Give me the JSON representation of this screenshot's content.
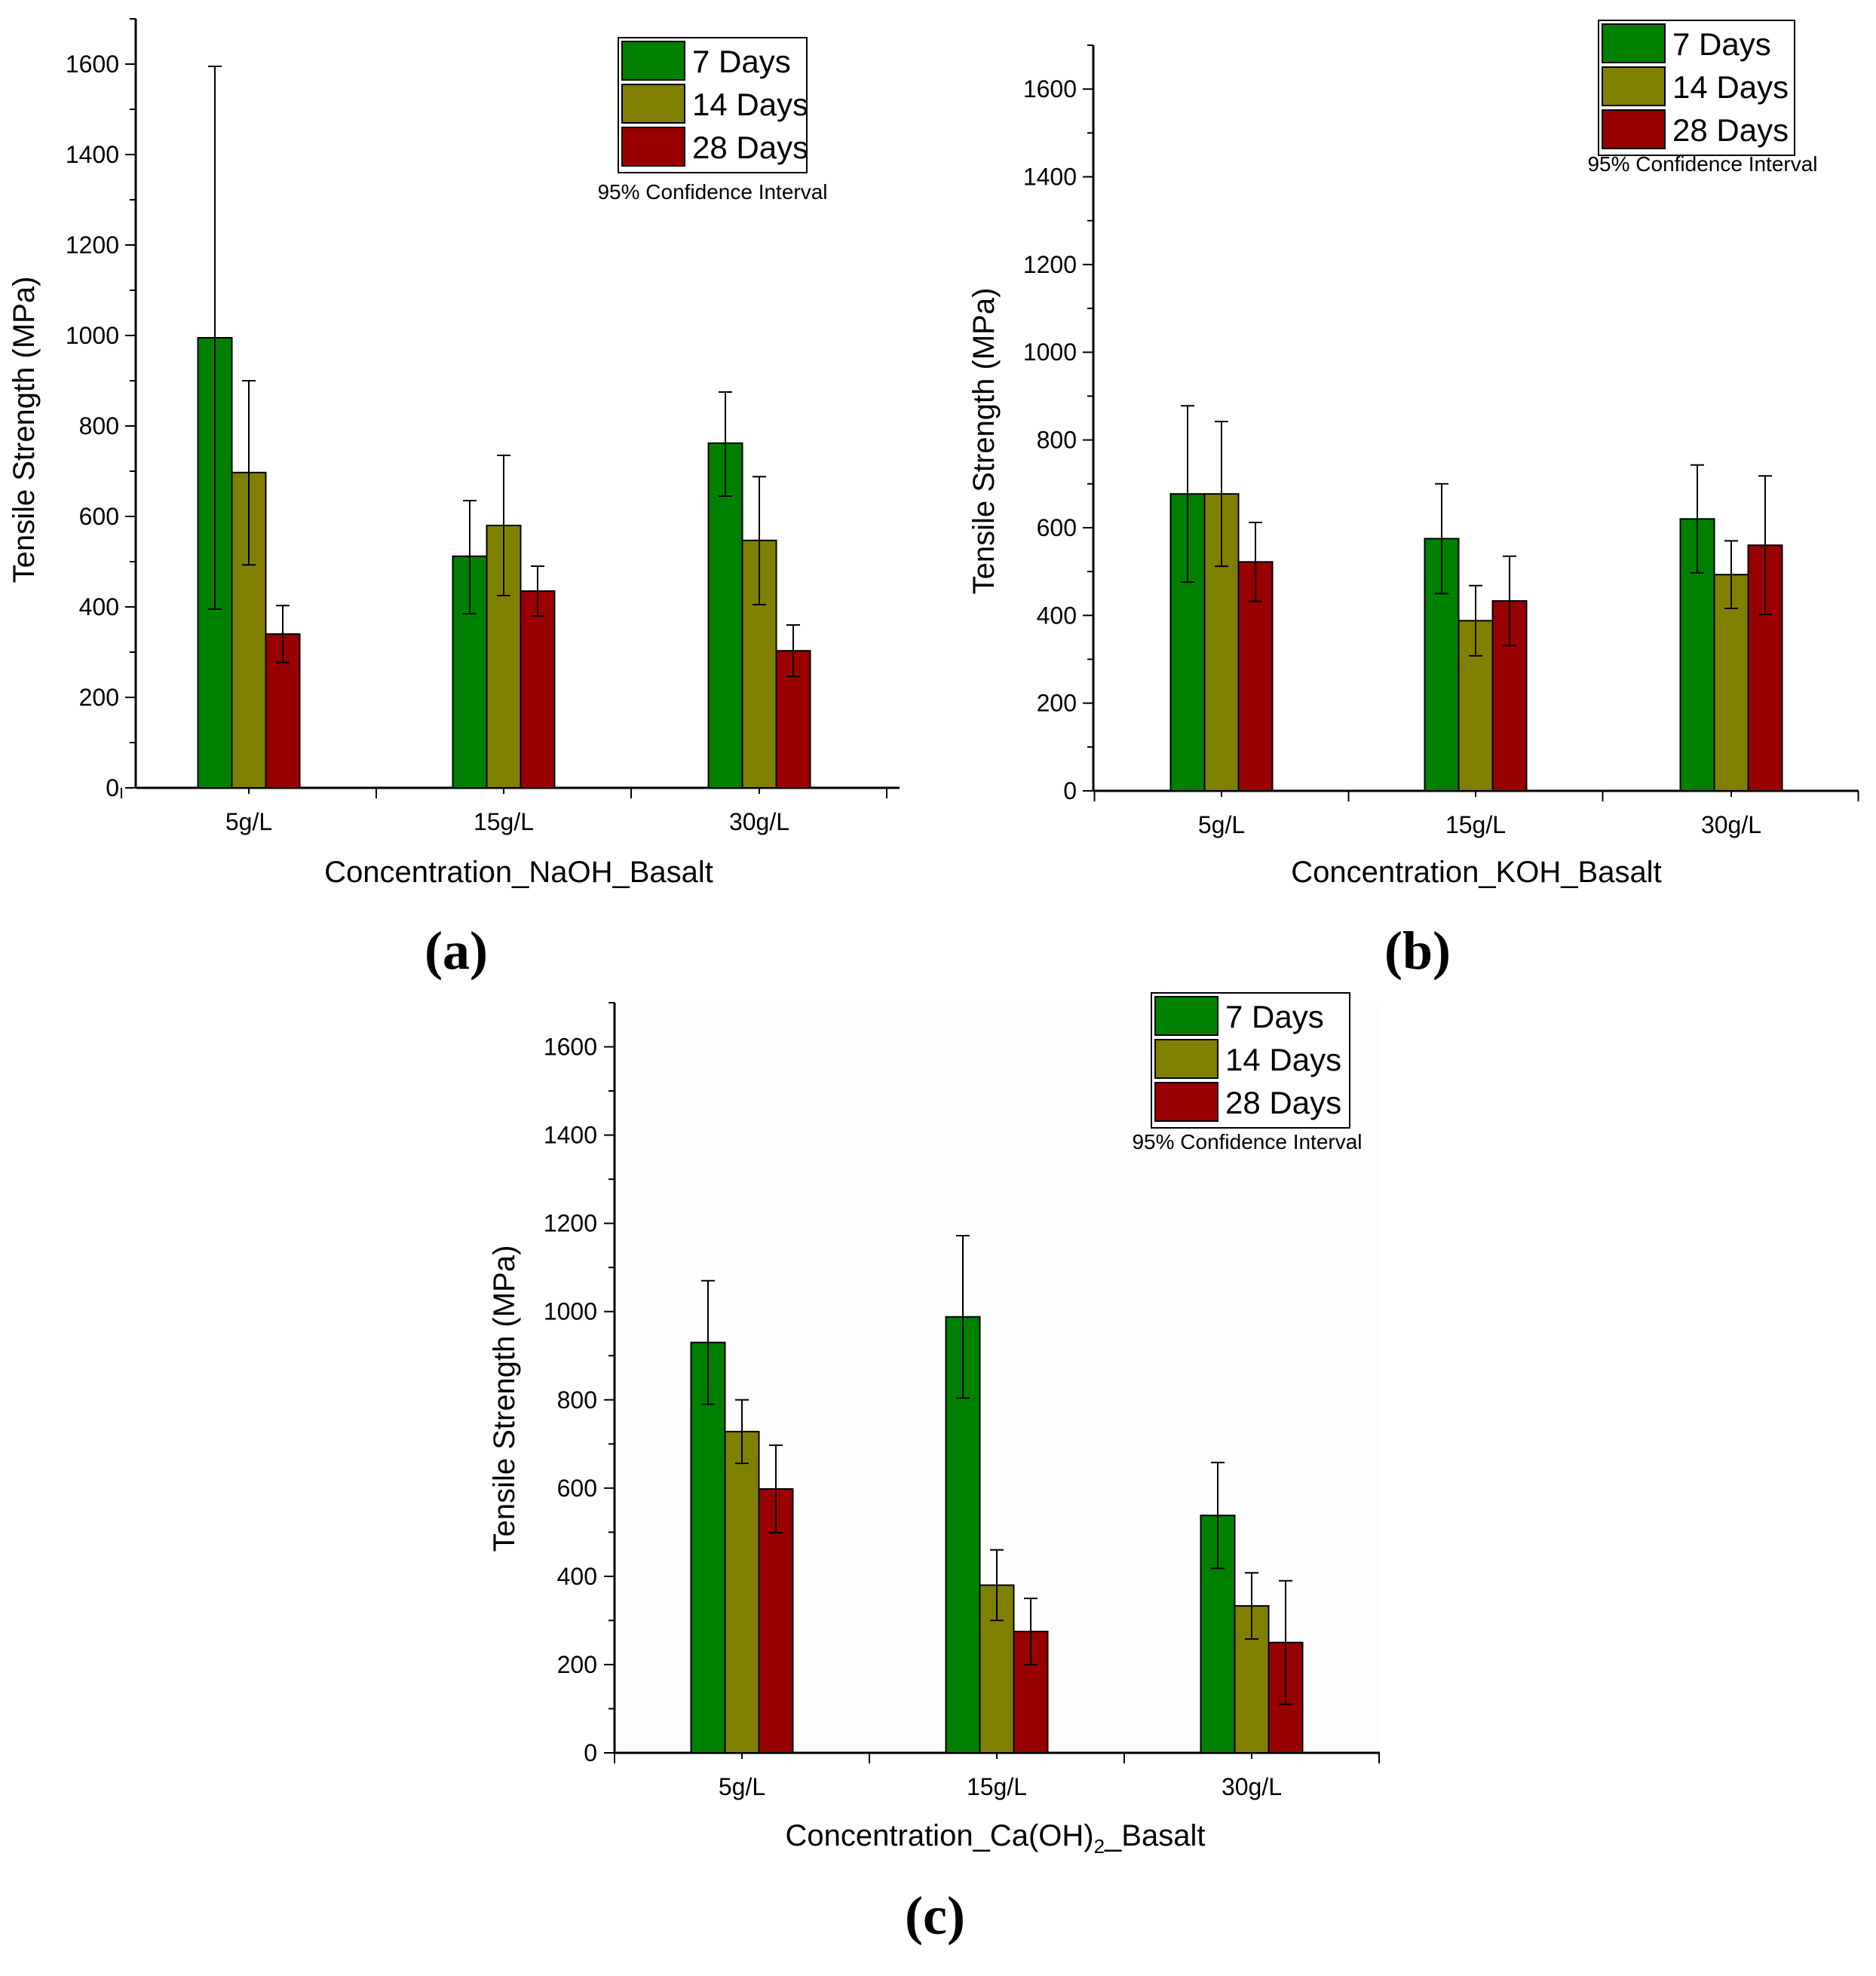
{
  "series_colors": {
    "7 Days": "#008000",
    "14 Days": "#808000",
    "28 Days": "#990000"
  },
  "chart_data": [
    {
      "type": "bar",
      "panel_label": "(a)",
      "title": "",
      "xlabel": "Concentration_NaOH_Basalt",
      "ylabel": "Tensile Strength (MPa)",
      "ylim": [
        0,
        1700
      ],
      "yticks": [
        0,
        200,
        400,
        600,
        800,
        1000,
        1200,
        1400,
        1600
      ],
      "categories": [
        "5g/L",
        "15g/L",
        "30g/L"
      ],
      "legend_note": "95% Confidence Interval",
      "legend_position": "top-right",
      "series": [
        {
          "name": "7 Days",
          "values": [
            995,
            512,
            762
          ],
          "error_upper": [
            1595,
            635,
            875
          ],
          "error_lower": [
            395,
            385,
            645
          ]
        },
        {
          "name": "14 Days",
          "values": [
            697,
            580,
            547
          ],
          "error_upper": [
            900,
            735,
            688
          ],
          "error_lower": [
            493,
            425,
            405
          ]
        },
        {
          "name": "28 Days",
          "values": [
            340,
            435,
            303
          ],
          "error_upper": [
            403,
            490,
            360
          ],
          "error_lower": [
            277,
            380,
            246
          ]
        }
      ]
    },
    {
      "type": "bar",
      "panel_label": "(b)",
      "title": "",
      "xlabel": "Concentration_KOH_Basalt",
      "ylabel": "Tensile Strength (MPa)",
      "ylim": [
        0,
        1700
      ],
      "yticks": [
        0,
        200,
        400,
        600,
        800,
        1000,
        1200,
        1400,
        1600
      ],
      "categories": [
        "5g/L",
        "15g/L",
        "30g/L"
      ],
      "legend_note": "95% Confidence Interval",
      "legend_position": "top-right",
      "series": [
        {
          "name": "7 Days",
          "values": [
            677,
            575,
            620
          ],
          "error_upper": [
            878,
            700,
            743
          ],
          "error_lower": [
            476,
            450,
            497
          ]
        },
        {
          "name": "14 Days",
          "values": [
            677,
            388,
            493
          ],
          "error_upper": [
            842,
            468,
            570
          ],
          "error_lower": [
            512,
            308,
            416
          ]
        },
        {
          "name": "28 Days",
          "values": [
            522,
            433,
            560
          ],
          "error_upper": [
            612,
            535,
            718
          ],
          "error_lower": [
            432,
            331,
            402
          ]
        }
      ]
    },
    {
      "type": "bar",
      "panel_label": "(c)",
      "title": "",
      "xlabel": "Concentration_Ca(OH)",
      "xlabel_sub": "2",
      "xlabel_suffix": "_Basalt",
      "ylabel": "Tensile Strength (MPa)",
      "ylim": [
        0,
        1700
      ],
      "yticks": [
        0,
        200,
        400,
        600,
        800,
        1000,
        1200,
        1400,
        1600
      ],
      "categories": [
        "5g/L",
        "15g/L",
        "30g/L"
      ],
      "legend_note": "95% Confidence Interval",
      "legend_position": "top-right",
      "series": [
        {
          "name": "7 Days",
          "values": [
            930,
            988,
            538
          ],
          "error_upper": [
            1070,
            1172,
            658
          ],
          "error_lower": [
            790,
            804,
            418
          ]
        },
        {
          "name": "14 Days",
          "values": [
            728,
            380,
            333
          ],
          "error_upper": [
            800,
            460,
            408
          ],
          "error_lower": [
            656,
            300,
            258
          ]
        },
        {
          "name": "28 Days",
          "values": [
            598,
            275,
            250
          ],
          "error_upper": [
            697,
            350,
            390
          ],
          "error_lower": [
            499,
            200,
            110
          ]
        }
      ]
    }
  ]
}
